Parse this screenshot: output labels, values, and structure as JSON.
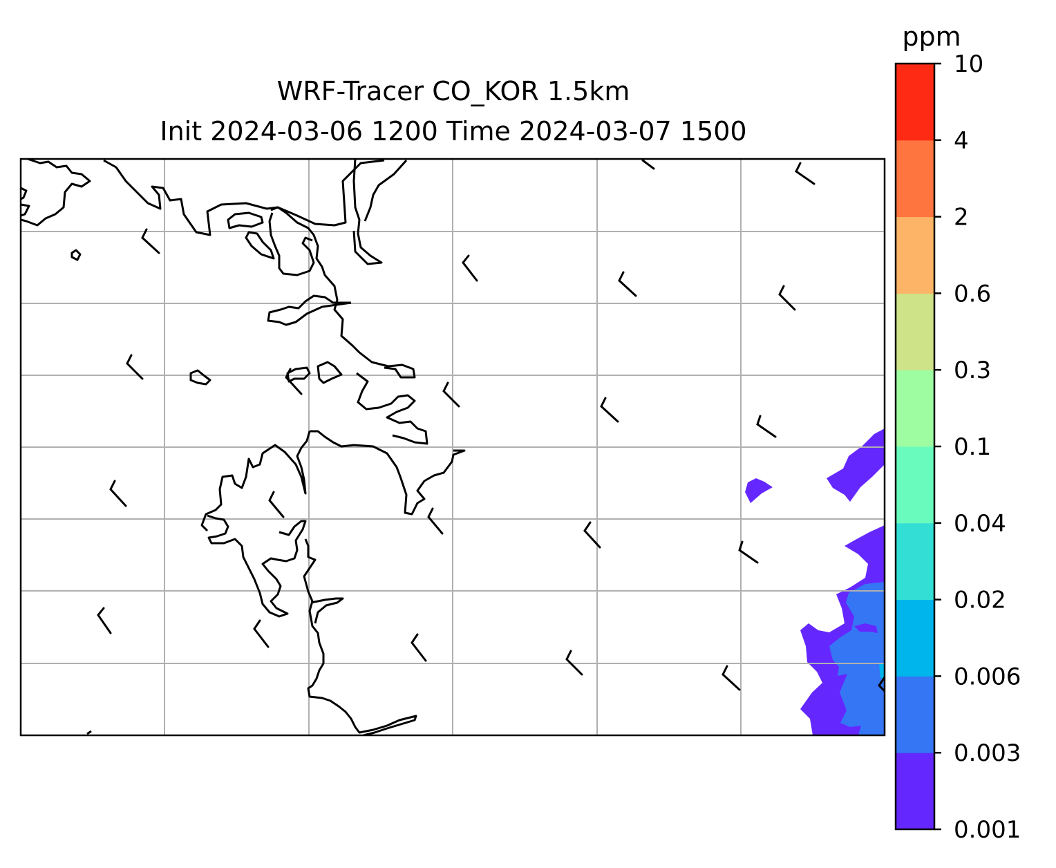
{
  "title": {
    "line1": "WRF-Tracer CO_KOR 1.5km",
    "line2": "Init 2024-03-06 1200 Time 2024-03-07 1500"
  },
  "colorbar": {
    "unit": "ppm",
    "levels": [
      "0.001",
      "0.003",
      "0.006",
      "0.02",
      "0.04",
      "0.1",
      "0.3",
      "0.6",
      "2",
      "4",
      "10"
    ],
    "colors": [
      "#6428FF",
      "#3576F4",
      "#00B5EC",
      "#33DED5",
      "#69FBBD",
      "#9DFDA0",
      "#CEE287",
      "#FDB466",
      "#FF7540",
      "#FF2A14"
    ]
  },
  "map": {
    "gridlines": true,
    "coastline_color": "#000000",
    "grid_color": "#B0B0B0",
    "wind_barbs": true
  }
}
